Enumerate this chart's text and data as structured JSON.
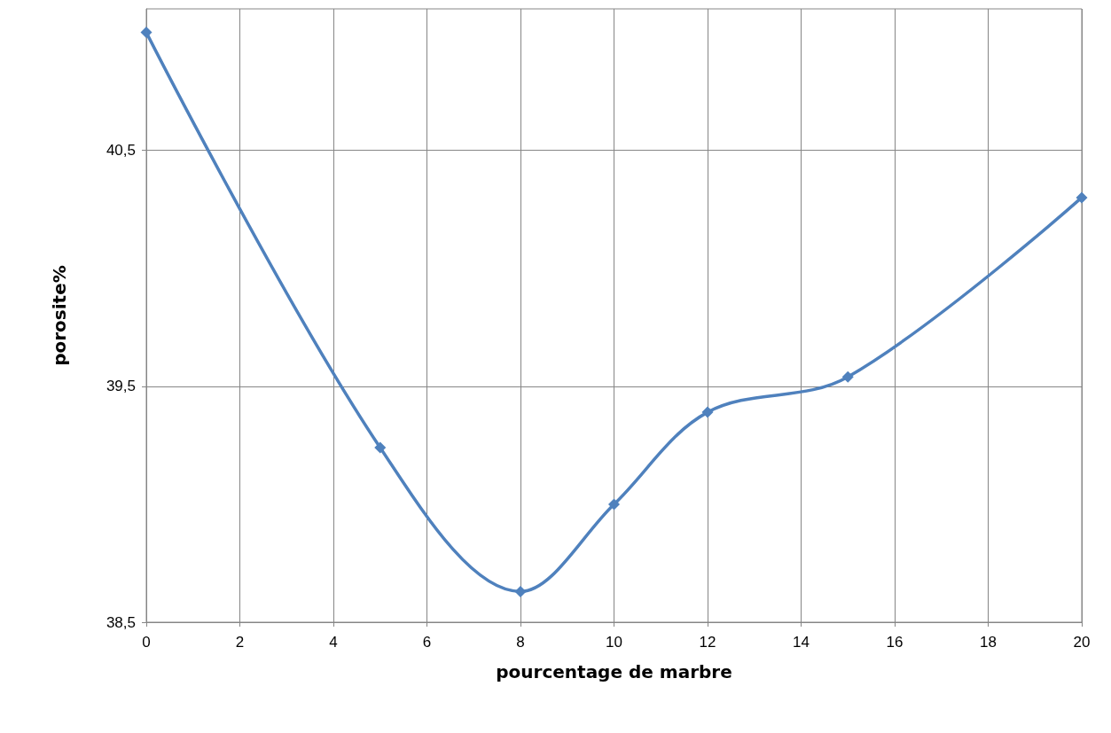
{
  "chart_data": {
    "type": "line",
    "xlabel": "pourcentage de marbre",
    "ylabel": "porosite%",
    "x": [
      0,
      5,
      8,
      10,
      12,
      15,
      20
    ],
    "series": [
      {
        "color": "#4f81bd",
        "values": [
          41.0,
          39.24,
          38.63,
          39.0,
          39.39,
          39.54,
          40.3
        ]
      }
    ],
    "xlim": [
      0,
      20
    ],
    "xticks": [
      0,
      2,
      4,
      6,
      8,
      10,
      12,
      14,
      16,
      18,
      20
    ],
    "ylim": [
      38.5,
      41.1
    ],
    "yticks": [
      {
        "value": 38.5,
        "label": "38,5"
      },
      {
        "value": 39.5,
        "label": "39,5"
      },
      {
        "value": 40.5,
        "label": "40,5"
      }
    ],
    "grid": true,
    "marker": "diamond",
    "line_style": "solid"
  }
}
